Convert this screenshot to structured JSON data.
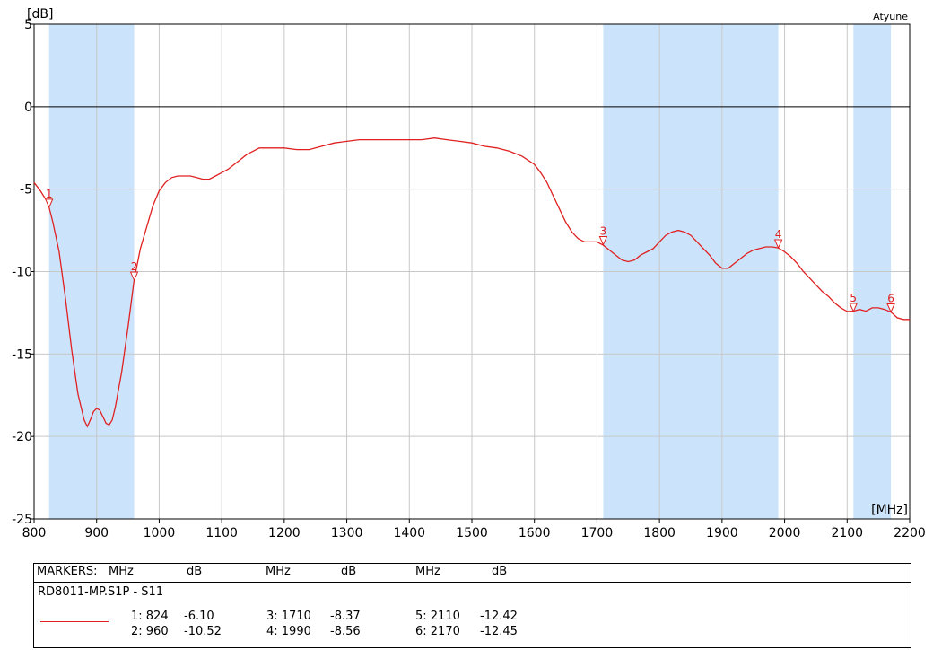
{
  "chart_data": {
    "type": "line",
    "xlabel": "[MHz]",
    "ylabel": "[dB]",
    "xlim": [
      800,
      2200
    ],
    "ylim": [
      -25,
      5
    ],
    "xticks": [
      800,
      900,
      1000,
      1100,
      1200,
      1300,
      1400,
      1500,
      1600,
      1700,
      1800,
      1900,
      2000,
      2100,
      2200
    ],
    "yticks": [
      5,
      0,
      -5,
      -10,
      -15,
      -20,
      -25
    ],
    "grid": true,
    "trace_label": "Atyune",
    "reference_line": 0,
    "colors": {
      "trace": "#e02020",
      "band": "#cce4fb",
      "grid": "#c8c8c8",
      "axis": "#000000"
    },
    "bands": [
      [
        824,
        960
      ],
      [
        1710,
        1990
      ],
      [
        2110,
        2170
      ]
    ],
    "series": [
      {
        "name": "RD8011-MP.S1P - S11",
        "x": [
          800,
          810,
          820,
          824,
          830,
          840,
          850,
          860,
          870,
          880,
          885,
          890,
          895,
          900,
          905,
          910,
          915,
          920,
          925,
          930,
          940,
          950,
          960,
          970,
          980,
          990,
          1000,
          1010,
          1020,
          1030,
          1040,
          1050,
          1060,
          1070,
          1080,
          1090,
          1100,
          1110,
          1120,
          1130,
          1140,
          1150,
          1160,
          1170,
          1180,
          1200,
          1220,
          1240,
          1260,
          1280,
          1300,
          1320,
          1340,
          1360,
          1380,
          1400,
          1420,
          1440,
          1460,
          1480,
          1500,
          1520,
          1540,
          1560,
          1580,
          1600,
          1610,
          1620,
          1630,
          1640,
          1650,
          1660,
          1670,
          1680,
          1690,
          1700,
          1710,
          1720,
          1730,
          1740,
          1750,
          1760,
          1770,
          1780,
          1790,
          1800,
          1810,
          1820,
          1830,
          1840,
          1850,
          1860,
          1870,
          1880,
          1890,
          1900,
          1910,
          1920,
          1930,
          1940,
          1950,
          1960,
          1970,
          1980,
          1990,
          2000,
          2010,
          2020,
          2030,
          2040,
          2050,
          2060,
          2070,
          2080,
          2090,
          2100,
          2110,
          2120,
          2130,
          2140,
          2150,
          2160,
          2170,
          2180,
          2190,
          2200
        ],
        "y": [
          -4.6,
          -5.1,
          -5.7,
          -6.1,
          -7.0,
          -8.8,
          -11.6,
          -14.7,
          -17.4,
          -19.0,
          -19.4,
          -19.0,
          -18.5,
          -18.3,
          -18.4,
          -18.8,
          -19.2,
          -19.3,
          -19.0,
          -18.2,
          -16.1,
          -13.4,
          -10.5,
          -8.6,
          -7.3,
          -6.0,
          -5.1,
          -4.6,
          -4.3,
          -4.2,
          -4.2,
          -4.2,
          -4.3,
          -4.4,
          -4.4,
          -4.2,
          -4.0,
          -3.8,
          -3.5,
          -3.2,
          -2.9,
          -2.7,
          -2.5,
          -2.5,
          -2.5,
          -2.5,
          -2.6,
          -2.6,
          -2.4,
          -2.2,
          -2.1,
          -2.0,
          -2.0,
          -2.0,
          -2.0,
          -2.0,
          -2.0,
          -1.9,
          -2.0,
          -2.1,
          -2.2,
          -2.4,
          -2.5,
          -2.7,
          -3.0,
          -3.5,
          -4.0,
          -4.6,
          -5.4,
          -6.2,
          -7.0,
          -7.6,
          -8.0,
          -8.2,
          -8.2,
          -8.2,
          -8.4,
          -8.7,
          -9.0,
          -9.3,
          -9.4,
          -9.3,
          -9.0,
          -8.8,
          -8.6,
          -8.2,
          -7.8,
          -7.6,
          -7.5,
          -7.6,
          -7.8,
          -8.2,
          -8.6,
          -9.0,
          -9.5,
          -9.8,
          -9.8,
          -9.5,
          -9.2,
          -8.9,
          -8.7,
          -8.6,
          -8.5,
          -8.5,
          -8.56,
          -8.8,
          -9.1,
          -9.5,
          -10.0,
          -10.4,
          -10.8,
          -11.2,
          -11.5,
          -11.9,
          -12.2,
          -12.42,
          -12.4,
          -12.3,
          -12.4,
          -12.2,
          -12.2,
          -12.3,
          -12.45,
          -12.8,
          -12.9,
          -12.9
        ]
      }
    ],
    "markers": [
      {
        "id": "1",
        "freq": 824,
        "db": -6.1
      },
      {
        "id": "2",
        "freq": 960,
        "db": -10.52
      },
      {
        "id": "3",
        "freq": 1710,
        "db": -8.37
      },
      {
        "id": "4",
        "freq": 1990,
        "db": -8.56
      },
      {
        "id": "5",
        "freq": 2110,
        "db": -12.42
      },
      {
        "id": "6",
        "freq": 2170,
        "db": -12.45
      }
    ]
  },
  "marker_panel": {
    "header": [
      "MARKERS:",
      "MHz",
      "dB",
      "MHz",
      "dB",
      "MHz",
      "dB"
    ],
    "file_label": "RD8011-MP.S1P - S11",
    "rows": [
      [
        "1: 824",
        "-6.10",
        "3: 1710",
        "-8.37",
        "5: 2110",
        "-12.42"
      ],
      [
        "2: 960",
        "-10.52",
        "4: 1990",
        "-8.56",
        "6: 2170",
        "-12.45"
      ]
    ]
  }
}
